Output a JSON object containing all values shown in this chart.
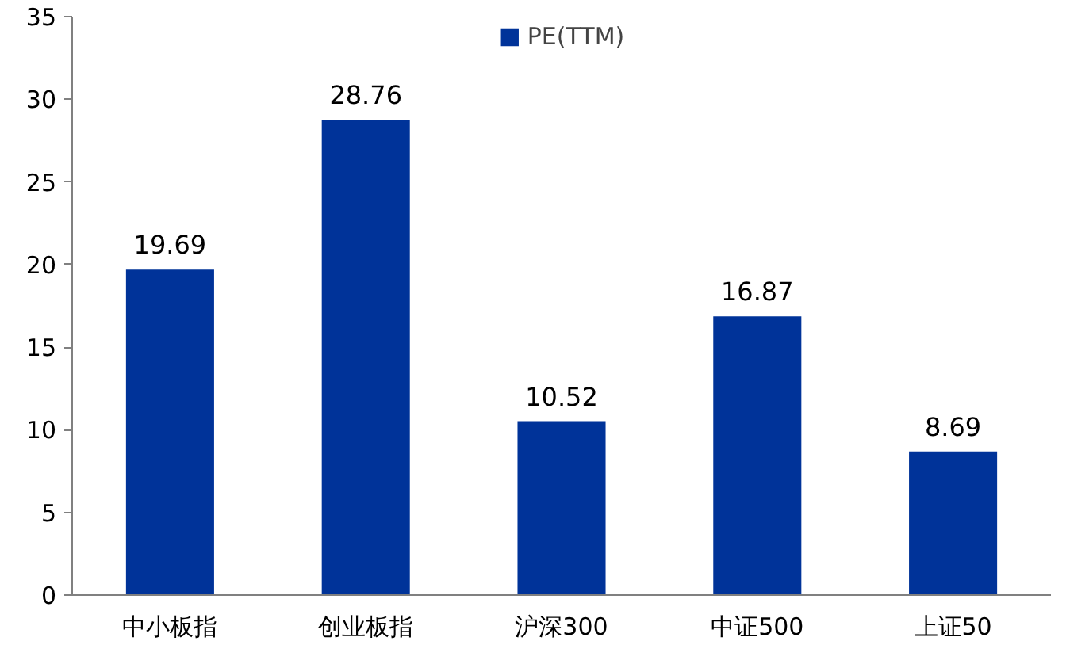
{
  "chart_data": {
    "type": "bar",
    "categories": [
      "中小板指",
      "创业板指",
      "沪深300",
      "中证500",
      "上证50"
    ],
    "series": [
      {
        "name": "PE(TTM)",
        "color": "#003399",
        "values": [
          19.69,
          28.76,
          10.52,
          16.87,
          8.69
        ]
      }
    ],
    "ylim": [
      0,
      35
    ],
    "yticks": [
      0,
      5,
      10,
      15,
      20,
      25,
      30,
      35
    ],
    "data_labels": true,
    "grid": false,
    "legend": "top"
  }
}
